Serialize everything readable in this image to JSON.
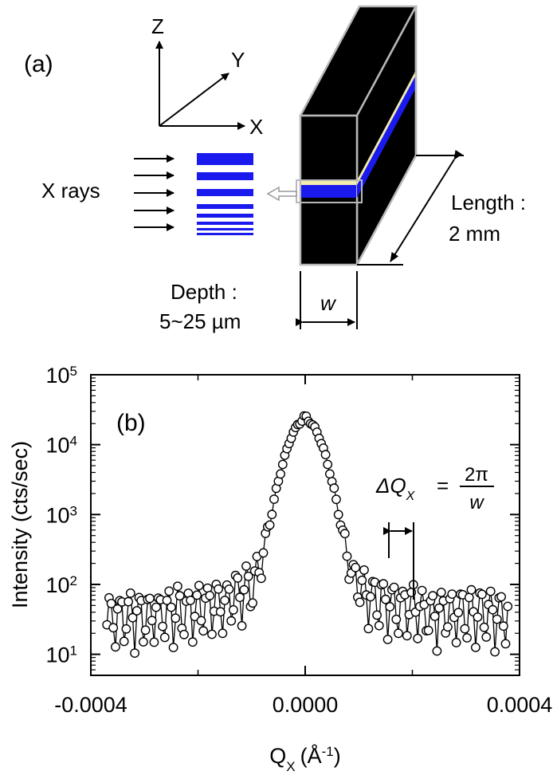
{
  "panel_a": {
    "label": "(a)",
    "axes": {
      "z": "Z",
      "y": "Y",
      "x": "X"
    },
    "xrays_label": "X rays",
    "length_label": "Length :",
    "length_value": "2 mm",
    "width_label": "w",
    "depth_label": "Depth :",
    "depth_value": "5~25 µm",
    "colors": {
      "block": "#000000",
      "layer": "#1a1aee",
      "interface": "#f3edb0",
      "outline": "#b8b8b8"
    }
  },
  "panel_b": {
    "label": "(b)",
    "annotation": {
      "prefix": "ΔQ",
      "subscript": "X",
      "equals": "=",
      "numerator": "2π",
      "denominator": "w"
    }
  },
  "chart_data": {
    "type": "scatter",
    "title": "",
    "xlabel": "Q",
    "xlabel_sub": "X",
    "xlabel_unit": "(Å",
    "xlabel_unit_sup": "-1",
    "xlabel_unit_close": ")",
    "ylabel": "Intensity (cts/sec)",
    "y_scale": "log",
    "xlim": [
      -0.0004,
      0.0004
    ],
    "ylim": [
      5,
      100000
    ],
    "x_ticks": [
      -0.0004,
      0.0,
      0.0004
    ],
    "x_tick_labels": [
      "-0.0004",
      "0.0000",
      "0.0004"
    ],
    "y_ticks": [
      10,
      100,
      1000,
      10000,
      100000
    ],
    "y_tick_labels": [
      {
        "base": "10",
        "exp": "1"
      },
      {
        "base": "10",
        "exp": "2"
      },
      {
        "base": "10",
        "exp": "3"
      },
      {
        "base": "10",
        "exp": "4"
      },
      {
        "base": "10",
        "exp": "5"
      }
    ],
    "grid": false,
    "marker": "open-circle",
    "series": [
      {
        "envelope_center": 0.0,
        "peak_value": 21000,
        "fringe_period": 1.82e-05,
        "x_min": -0.00037,
        "x_max": 0.00038,
        "point_spacing": 4e-06
      }
    ]
  }
}
